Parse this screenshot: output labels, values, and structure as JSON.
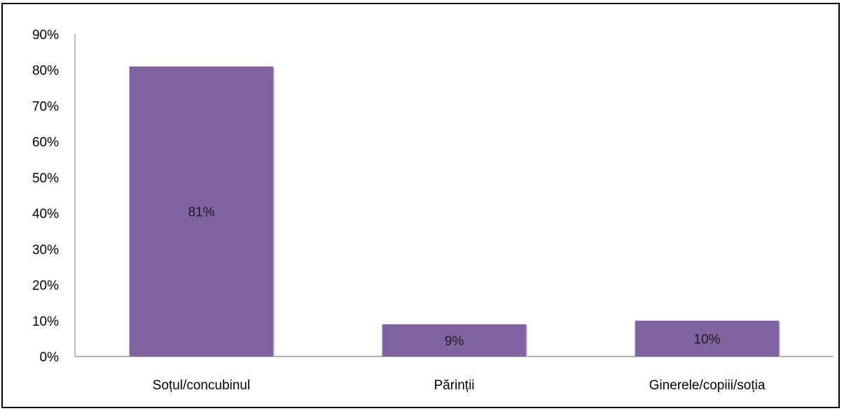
{
  "chart_data": {
    "type": "bar",
    "categories": [
      "Soțul/concubinul",
      "Părinții",
      "Ginerele/copiii/soția"
    ],
    "values": [
      81,
      9,
      10
    ],
    "data_labels": [
      "81%",
      "9%",
      "10%"
    ],
    "ylim": [
      0,
      90
    ],
    "y_ticks": [
      0,
      10,
      20,
      30,
      40,
      50,
      60,
      70,
      80,
      90
    ],
    "y_tick_labels": [
      "0%",
      "10%",
      "20%",
      "30%",
      "40%",
      "50%",
      "60%",
      "70%",
      "80%",
      "90%"
    ],
    "title": "",
    "xlabel": "",
    "ylabel": "",
    "grid": false,
    "legend": "none",
    "bar_color": "#8064a2"
  }
}
